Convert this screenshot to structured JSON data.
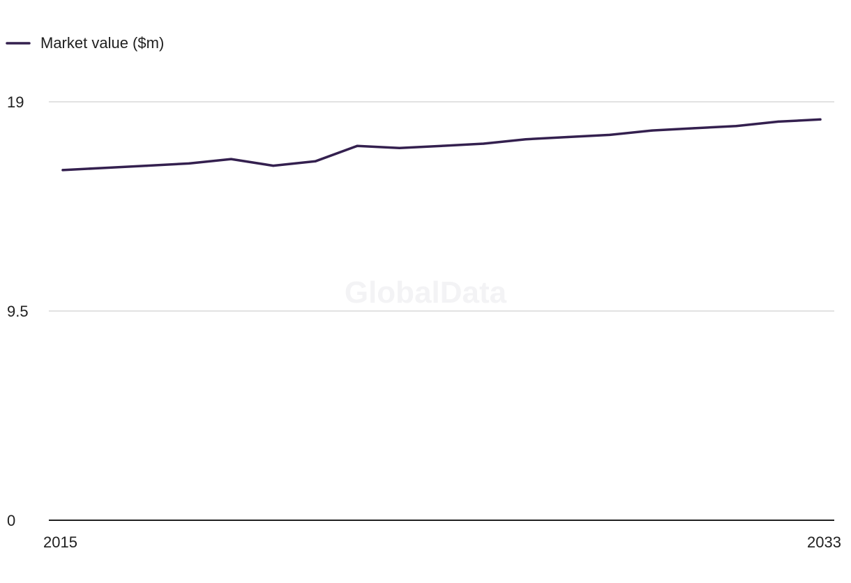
{
  "chart_data": {
    "type": "line",
    "title": "",
    "xlabel": "",
    "ylabel": "",
    "legend": {
      "position": "top-left"
    },
    "watermark": "GlobalData",
    "x": [
      2015,
      2016,
      2017,
      2018,
      2019,
      2020,
      2021,
      2022,
      2023,
      2024,
      2025,
      2026,
      2027,
      2028,
      2029,
      2030,
      2031,
      2032,
      2033
    ],
    "xtick_labels": [
      "2015",
      "2033"
    ],
    "ylim": [
      0,
      19
    ],
    "yticks": [
      0,
      9.5,
      19
    ],
    "ytick_labels": [
      "0",
      "9.5",
      "19"
    ],
    "grid": true,
    "series": [
      {
        "name": "Market value ($m)",
        "color": "#34204f",
        "values": [
          15.9,
          16.0,
          16.1,
          16.2,
          16.4,
          16.1,
          16.3,
          17.0,
          16.9,
          17.0,
          17.1,
          17.3,
          17.4,
          17.5,
          17.7,
          17.8,
          17.9,
          18.1,
          18.2
        ]
      }
    ],
    "colors": {
      "line": "#34204f",
      "grid": "#d9d9d9",
      "axis": "#1f1f1f"
    }
  }
}
